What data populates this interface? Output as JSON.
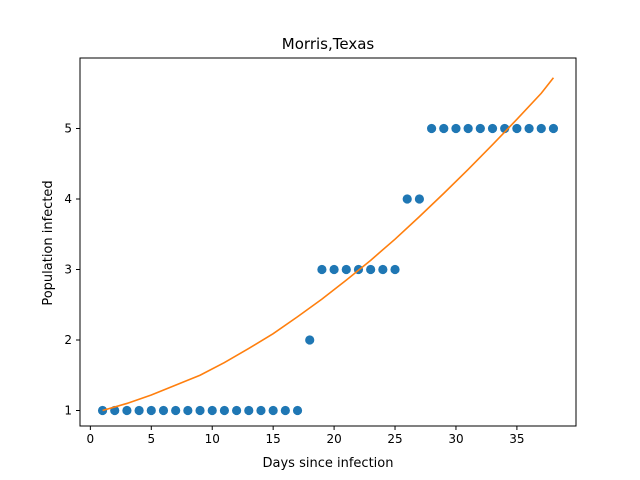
{
  "chart_data": {
    "type": "scatter",
    "title": "Morris,Texas",
    "xlabel": "Days since infection",
    "ylabel": "Population infected",
    "xlim": [
      -0.85,
      39.85
    ],
    "ylim": [
      0.78,
      6.0
    ],
    "xticks": [
      0,
      5,
      10,
      15,
      20,
      25,
      30,
      35
    ],
    "yticks": [
      1,
      2,
      3,
      4,
      5
    ],
    "grid": false,
    "legend": "none",
    "series": [
      {
        "kind": "scatter",
        "color": "#1f77b4",
        "x": [
          1,
          2,
          3,
          4,
          5,
          6,
          7,
          8,
          9,
          10,
          11,
          12,
          13,
          14,
          15,
          16,
          17,
          18,
          19,
          20,
          21,
          22,
          23,
          24,
          25,
          26,
          27,
          28,
          29,
          30,
          31,
          32,
          33,
          34,
          35,
          36,
          37,
          38
        ],
        "y": [
          1,
          1,
          1,
          1,
          1,
          1,
          1,
          1,
          1,
          1,
          1,
          1,
          1,
          1,
          1,
          1,
          1,
          2,
          3,
          3,
          3,
          3,
          3,
          3,
          3,
          4,
          4,
          5,
          5,
          5,
          5,
          5,
          5,
          5,
          5,
          5,
          5,
          5
        ]
      },
      {
        "kind": "line",
        "color": "#ff7f0e",
        "x": [
          1,
          3,
          5,
          7,
          9,
          11,
          13,
          15,
          17,
          19,
          21,
          23,
          25,
          27,
          29,
          31,
          33,
          35,
          37,
          38
        ],
        "y": [
          1.0,
          1.1,
          1.22,
          1.36,
          1.5,
          1.68,
          1.88,
          2.09,
          2.33,
          2.58,
          2.85,
          3.13,
          3.43,
          3.75,
          4.08,
          4.42,
          4.77,
          5.13,
          5.5,
          5.72
        ]
      }
    ]
  }
}
